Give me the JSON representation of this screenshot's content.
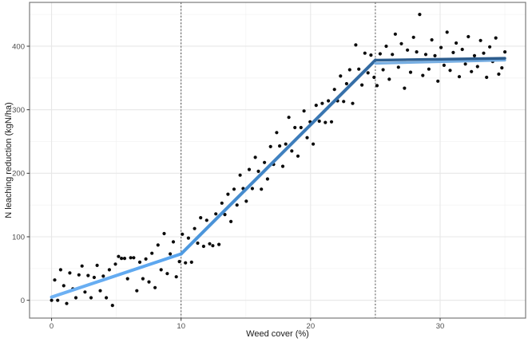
{
  "figure": {
    "background": "#ffffff",
    "style": {
      "panel_border_color": "#7a7a7a",
      "major_grid_color": "#e7e7e7",
      "minor_grid_color": "#f3f3f3",
      "tick_mark_color": "#333333",
      "tick_label_color": "#4d4d4d",
      "axis_title_color": "#1a1a1a"
    }
  },
  "chart_data": {
    "type": "scatter",
    "title": "",
    "xlabel": "Weed cover (%)",
    "ylabel": "N leaching reduction (kgN/ha)",
    "xlim": [
      -1.7,
      36.6
    ],
    "ylim": [
      -28,
      469
    ],
    "x_major_ticks": [
      0,
      10,
      20,
      30
    ],
    "x_minor_ticks": [
      5,
      15,
      25,
      35
    ],
    "y_major_ticks": [
      0,
      100,
      200,
      300,
      400
    ],
    "y_minor_ticks": [
      50,
      150,
      250,
      350,
      450
    ],
    "grid": true,
    "legend": "none",
    "point_color": "#0b0b0b",
    "point_radius": 2.1,
    "breakpoint_lines": {
      "x_values": [
        10,
        25
      ],
      "color": "#3c3c3c",
      "style": "dashed"
    },
    "fit_segments": [
      {
        "id": "seg-below-breakpoint",
        "from": [
          0,
          5
        ],
        "to": [
          10,
          73
        ],
        "color_start": "#6fb2f4",
        "color_end": "#58a4ee",
        "width": 4
      },
      {
        "id": "seg-rising",
        "from": [
          10,
          73
        ],
        "to": [
          25,
          378
        ],
        "color_start": "#4f9be2",
        "color_end": "#31689f",
        "width": 4
      },
      {
        "id": "seg-plateau-under",
        "from": [
          25,
          373
        ],
        "to": [
          35,
          378
        ],
        "color_start": "#77aee2",
        "color_end": "#77aee2",
        "width": 3.2
      },
      {
        "id": "seg-plateau",
        "from": [
          25,
          378
        ],
        "to": [
          35,
          381
        ],
        "color_start": "#2e5f90",
        "color_end": "#2d5c8c",
        "width": 3.4
      }
    ],
    "points": [
      [
        0,
        0
      ],
      [
        0.24,
        32
      ],
      [
        0.47,
        0
      ],
      [
        0.7,
        48
      ],
      [
        0.94,
        23
      ],
      [
        1.17,
        -5
      ],
      [
        1.41,
        43
      ],
      [
        1.64,
        18
      ],
      [
        1.88,
        4
      ],
      [
        2.11,
        40
      ],
      [
        2.35,
        54
      ],
      [
        2.58,
        13
      ],
      [
        2.82,
        39
      ],
      [
        3.05,
        4
      ],
      [
        3.29,
        36
      ],
      [
        3.52,
        55
      ],
      [
        3.76,
        15
      ],
      [
        3.99,
        38
      ],
      [
        4.23,
        4
      ],
      [
        4.46,
        48
      ],
      [
        4.7,
        -8
      ],
      [
        4.93,
        57
      ],
      [
        5.17,
        69
      ],
      [
        5.4,
        66
      ],
      [
        5.64,
        66
      ],
      [
        5.87,
        34
      ],
      [
        6.11,
        67
      ],
      [
        6.34,
        67
      ],
      [
        6.58,
        15
      ],
      [
        6.81,
        60
      ],
      [
        7.05,
        34
      ],
      [
        7.28,
        65
      ],
      [
        7.52,
        29
      ],
      [
        7.75,
        74
      ],
      [
        7.99,
        20
      ],
      [
        8.22,
        87
      ],
      [
        8.46,
        48
      ],
      [
        8.69,
        105
      ],
      [
        8.93,
        42
      ],
      [
        9.16,
        73
      ],
      [
        9.4,
        92
      ],
      [
        9.63,
        37
      ],
      [
        9.87,
        61
      ],
      [
        10.1,
        104
      ],
      [
        10.34,
        59
      ],
      [
        10.57,
        98
      ],
      [
        10.81,
        60
      ],
      [
        11.04,
        113
      ],
      [
        11.28,
        90
      ],
      [
        11.51,
        130
      ],
      [
        11.74,
        85
      ],
      [
        11.98,
        126
      ],
      [
        12.21,
        89
      ],
      [
        12.45,
        86
      ],
      [
        12.68,
        136
      ],
      [
        12.92,
        88
      ],
      [
        13.15,
        153
      ],
      [
        13.38,
        135
      ],
      [
        13.62,
        167
      ],
      [
        13.85,
        124
      ],
      [
        14.09,
        175
      ],
      [
        14.32,
        150
      ],
      [
        14.56,
        197
      ],
      [
        14.79,
        176
      ],
      [
        15.03,
        156
      ],
      [
        15.26,
        206
      ],
      [
        15.5,
        176
      ],
      [
        15.73,
        225
      ],
      [
        15.97,
        203
      ],
      [
        16.2,
        175
      ],
      [
        16.44,
        217
      ],
      [
        16.67,
        191
      ],
      [
        16.91,
        242
      ],
      [
        17.14,
        214
      ],
      [
        17.38,
        264
      ],
      [
        17.61,
        243
      ],
      [
        17.85,
        211
      ],
      [
        18.08,
        246
      ],
      [
        18.32,
        288
      ],
      [
        18.55,
        235
      ],
      [
        18.79,
        272
      ],
      [
        19.02,
        227
      ],
      [
        19.26,
        272
      ],
      [
        19.49,
        298
      ],
      [
        19.73,
        256
      ],
      [
        19.96,
        281
      ],
      [
        20.2,
        246
      ],
      [
        20.43,
        307
      ],
      [
        20.67,
        282
      ],
      [
        20.9,
        310
      ],
      [
        21.14,
        280
      ],
      [
        21.37,
        314
      ],
      [
        21.61,
        281
      ],
      [
        21.84,
        332
      ],
      [
        22.08,
        314
      ],
      [
        22.31,
        353
      ],
      [
        22.55,
        313
      ],
      [
        22.78,
        341
      ],
      [
        23.02,
        363
      ],
      [
        23.25,
        310
      ],
      [
        23.49,
        402
      ],
      [
        23.72,
        364
      ],
      [
        23.96,
        339
      ],
      [
        24.19,
        389
      ],
      [
        24.43,
        358
      ],
      [
        24.66,
        386
      ],
      [
        24.9,
        351
      ],
      [
        25.13,
        338
      ],
      [
        25.37,
        388
      ],
      [
        25.6,
        363
      ],
      [
        25.84,
        400
      ],
      [
        26.07,
        348
      ],
      [
        26.31,
        387
      ],
      [
        26.54,
        419
      ],
      [
        26.78,
        367
      ],
      [
        27.01,
        404
      ],
      [
        27.25,
        334
      ],
      [
        27.48,
        394
      ],
      [
        27.72,
        359
      ],
      [
        27.95,
        414
      ],
      [
        28.19,
        391
      ],
      [
        28.42,
        450
      ],
      [
        28.66,
        354
      ],
      [
        28.89,
        387
      ],
      [
        29.13,
        364
      ],
      [
        29.36,
        410
      ],
      [
        29.6,
        385
      ],
      [
        29.83,
        345
      ],
      [
        30.07,
        398
      ],
      [
        30.3,
        370
      ],
      [
        30.54,
        422
      ],
      [
        30.77,
        362
      ],
      [
        31.01,
        390
      ],
      [
        31.24,
        405
      ],
      [
        31.48,
        352
      ],
      [
        31.71,
        395
      ],
      [
        31.95,
        372
      ],
      [
        32.18,
        415
      ],
      [
        32.42,
        360
      ],
      [
        32.65,
        385
      ],
      [
        32.89,
        368
      ],
      [
        33.12,
        409
      ],
      [
        33.36,
        389
      ],
      [
        33.59,
        351
      ],
      [
        33.83,
        399
      ],
      [
        34.06,
        376
      ],
      [
        34.3,
        413
      ],
      [
        34.53,
        356
      ],
      [
        34.77,
        366
      ],
      [
        35,
        391
      ]
    ]
  }
}
